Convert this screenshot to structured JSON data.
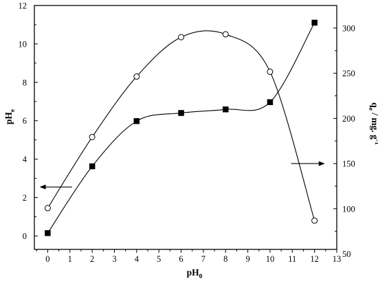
{
  "chart_data": {
    "type": "scatter",
    "title": "",
    "xlabel": "pH",
    "xlabel_sub": "0",
    "ylabel_left": "pH",
    "ylabel_left_sub": "e",
    "ylabel_right_q": "q",
    "ylabel_right_q_sub": "e",
    "ylabel_right_unit": " / mg. g",
    "ylabel_right_unit_sup": "-1",
    "xlim": [
      -0.6,
      13
    ],
    "ylim_left": [
      -0.7,
      12
    ],
    "ylim_right": [
      55,
      325
    ],
    "x_ticks": [
      0,
      1,
      2,
      3,
      4,
      5,
      6,
      7,
      8,
      9,
      10,
      11,
      12,
      13
    ],
    "y_ticks_left": [
      0,
      2,
      4,
      6,
      8,
      10,
      12
    ],
    "y_ticks_right": [
      50,
      100,
      150,
      200,
      250,
      300
    ],
    "grid": false,
    "series": [
      {
        "axis": "left",
        "marker": "open-circle",
        "x": [
          0,
          2,
          4,
          6,
          8,
          10,
          12
        ],
        "y": [
          1.45,
          5.15,
          8.3,
          10.35,
          10.5,
          8.55,
          0.8
        ]
      },
      {
        "axis": "right",
        "marker": "filled-square",
        "x": [
          0,
          2,
          4,
          6,
          8,
          10,
          12
        ],
        "y": [
          73,
          147,
          197,
          206,
          210,
          218,
          306
        ]
      }
    ],
    "annotations": [
      {
        "type": "arrow",
        "points_to": "left-axis"
      },
      {
        "type": "arrow",
        "points_to": "right-axis"
      }
    ]
  }
}
